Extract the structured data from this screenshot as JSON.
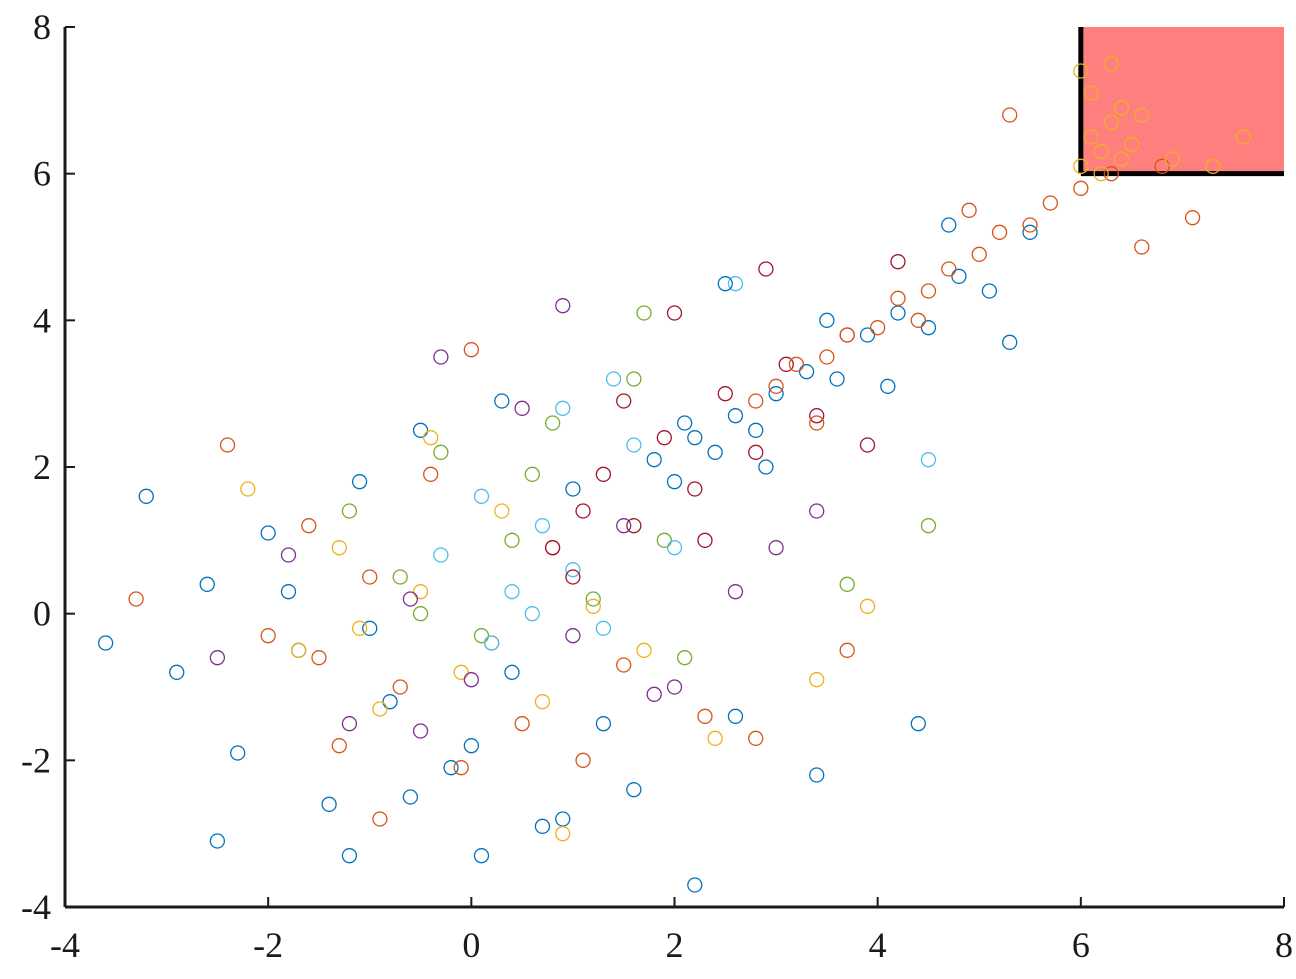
{
  "chart_data": {
    "type": "scatter",
    "xlim": [
      -4,
      8
    ],
    "ylim": [
      -4,
      8
    ],
    "xticks": [
      -4,
      -2,
      0,
      2,
      4,
      6,
      8
    ],
    "yticks": [
      -4,
      -2,
      0,
      2,
      4,
      6,
      8
    ],
    "grid": false,
    "highlight_region": {
      "x": [
        6,
        8
      ],
      "y": [
        6,
        8
      ],
      "color": "#ff7f7f",
      "edgecolor": "#000000"
    },
    "series": [
      {
        "color": "#0072bd",
        "x": [
          -3.6,
          -3.2,
          -2.9,
          -2.6,
          -2.3,
          -2.0,
          -1.7,
          -1.4,
          -1.1,
          -0.8,
          -0.5,
          -0.2,
          0.1,
          0.4,
          0.7,
          1.0,
          1.3,
          1.6,
          -2.5,
          -1.0,
          0.0,
          0.9,
          -1.8,
          -0.6,
          0.3,
          2.6,
          3.4,
          4.4,
          2.2,
          -1.2
        ],
        "y": [
          -0.4,
          1.6,
          -0.8,
          0.4,
          -1.9,
          1.1,
          -0.5,
          -2.6,
          1.8,
          -1.2,
          2.5,
          -2.1,
          -3.3,
          -0.8,
          -2.9,
          1.7,
          -1.5,
          -2.4,
          -3.1,
          -0.2,
          -1.8,
          -2.8,
          0.3,
          -2.5,
          2.9,
          -1.4,
          -2.2,
          -1.5,
          -3.7,
          -3.3
        ]
      },
      {
        "color": "#d95319",
        "x": [
          -2.4,
          -2.0,
          -1.6,
          -1.3,
          -1.0,
          -0.7,
          -0.4,
          -0.1,
          0.2,
          0.5,
          0.8,
          1.1,
          1.5,
          2.3,
          -0.9,
          -1.5,
          0.0,
          2.8,
          3.7,
          -3.3
        ],
        "y": [
          2.3,
          -0.3,
          1.2,
          -1.8,
          0.5,
          -1.0,
          1.9,
          -2.1,
          -0.4,
          -1.5,
          0.9,
          -2.0,
          -0.7,
          -1.4,
          -2.8,
          -0.6,
          3.6,
          -1.7,
          -0.5,
          0.2
        ]
      },
      {
        "color": "#edb120",
        "x": [
          -2.2,
          -1.7,
          -1.3,
          -0.9,
          -0.5,
          -0.1,
          0.3,
          0.7,
          1.2,
          1.7,
          2.4,
          3.4,
          -1.1,
          0.9,
          3.9,
          -0.4
        ],
        "y": [
          1.7,
          -0.5,
          0.9,
          -1.3,
          0.3,
          -0.8,
          1.4,
          -1.2,
          0.1,
          -0.5,
          -1.7,
          -0.9,
          -0.2,
          -3.0,
          0.1,
          2.4
        ]
      },
      {
        "color": "#7e2f8e",
        "x": [
          -2.5,
          -1.8,
          -1.2,
          -0.6,
          0.0,
          0.5,
          1.0,
          1.5,
          2.0,
          2.6,
          3.0,
          0.9,
          -0.3,
          1.8,
          3.4,
          -0.5
        ],
        "y": [
          -0.6,
          0.8,
          -1.5,
          0.2,
          -0.9,
          2.8,
          -0.3,
          1.2,
          -1.0,
          0.3,
          0.9,
          4.2,
          3.5,
          -1.1,
          1.4,
          -1.6
        ]
      },
      {
        "color": "#77ac30",
        "x": [
          -1.2,
          -0.7,
          -0.3,
          0.1,
          0.4,
          0.8,
          1.2,
          1.6,
          2.1,
          -0.5,
          0.6,
          1.9,
          3.7,
          4.5,
          1.7
        ],
        "y": [
          1.4,
          0.5,
          2.2,
          -0.3,
          1.0,
          2.6,
          0.2,
          3.2,
          -0.6,
          0.0,
          1.9,
          1.0,
          0.4,
          1.2,
          4.1
        ]
      },
      {
        "color": "#4dbeee",
        "x": [
          -0.3,
          0.1,
          0.4,
          0.7,
          1.0,
          1.3,
          1.6,
          2.0,
          0.2,
          0.9,
          2.6,
          4.5,
          1.4,
          0.6
        ],
        "y": [
          0.8,
          1.6,
          0.3,
          1.2,
          0.6,
          -0.2,
          2.3,
          0.9,
          -0.4,
          2.8,
          4.5,
          2.1,
          3.2,
          0.0
        ]
      },
      {
        "color": "#a2142f",
        "x": [
          0.8,
          1.1,
          1.3,
          1.6,
          1.9,
          2.2,
          2.5,
          2.8,
          3.1,
          3.4,
          3.7,
          1.5,
          2.0,
          2.9,
          3.9,
          1.0,
          2.3,
          4.2
        ],
        "y": [
          0.9,
          1.4,
          1.9,
          1.2,
          2.4,
          1.7,
          3.0,
          2.2,
          3.4,
          2.7,
          3.8,
          2.9,
          4.1,
          4.7,
          2.3,
          0.5,
          1.0,
          4.8
        ]
      },
      {
        "color": "#0072bd",
        "x": [
          1.8,
          2.0,
          2.2,
          2.4,
          2.6,
          2.8,
          3.0,
          3.3,
          3.6,
          3.9,
          4.2,
          4.5,
          4.8,
          5.1,
          5.5,
          2.1,
          2.9,
          3.5,
          4.1,
          4.7,
          5.3,
          2.5
        ],
        "y": [
          2.1,
          1.8,
          2.4,
          2.2,
          2.7,
          2.5,
          3.0,
          3.3,
          3.2,
          3.8,
          4.1,
          3.9,
          4.6,
          4.4,
          5.2,
          2.6,
          2.0,
          4.0,
          3.1,
          5.3,
          3.7,
          4.5
        ]
      },
      {
        "color": "#d95319",
        "x": [
          2.8,
          3.0,
          3.2,
          3.5,
          3.7,
          4.0,
          4.2,
          4.5,
          4.7,
          5.0,
          5.2,
          5.5,
          5.7,
          6.0,
          6.3,
          6.6,
          7.1,
          5.3,
          4.4,
          3.4,
          6.8,
          4.9
        ],
        "y": [
          2.9,
          3.1,
          3.4,
          3.5,
          3.8,
          3.9,
          4.3,
          4.4,
          4.7,
          4.9,
          5.2,
          5.3,
          5.6,
          5.8,
          6.0,
          5.0,
          5.4,
          6.8,
          4.0,
          2.6,
          6.1,
          5.5
        ]
      },
      {
        "color": "#edb120",
        "x": [
          6.0,
          6.1,
          6.2,
          6.3,
          6.4,
          6.5,
          6.1,
          6.3,
          6.6,
          6.9,
          7.3,
          7.6,
          6.2,
          6.0,
          6.4
        ],
        "y": [
          6.1,
          6.5,
          6.3,
          6.7,
          6.2,
          6.4,
          7.1,
          7.5,
          6.8,
          6.2,
          6.1,
          6.5,
          6.0,
          7.4,
          6.9
        ]
      }
    ]
  }
}
